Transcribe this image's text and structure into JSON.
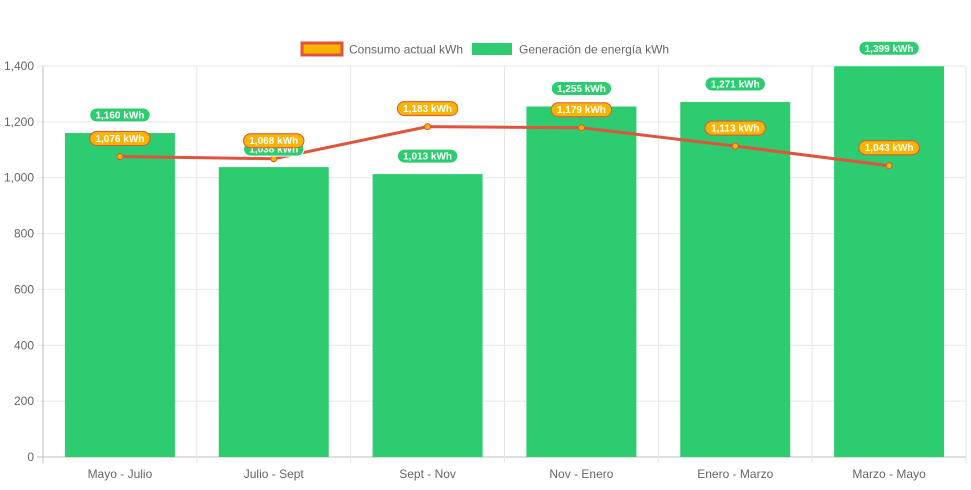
{
  "chart_data": {
    "type": "bar",
    "title": "",
    "xlabel": "",
    "ylabel": "",
    "ylim": [
      0,
      1400
    ],
    "yticks": [
      0,
      200,
      400,
      600,
      800,
      1000,
      1200,
      1400
    ],
    "ytick_labels": [
      "0",
      "200",
      "400",
      "600",
      "800",
      "1,000",
      "1,200",
      "1,400"
    ],
    "grid": true,
    "legend_position": "top-center",
    "categories": [
      "Mayo - Julio",
      "Julio - Sept",
      "Sept - Nov",
      "Nov - Enero",
      "Enero - Marzo",
      "Marzo - Mayo"
    ],
    "series": [
      {
        "name": "Consumo actual kWh",
        "type": "line",
        "values": [
          1076,
          1068,
          1183,
          1179,
          1113,
          1043
        ],
        "labels": [
          "1,076 kWh",
          "1,068 kWh",
          "1,183 kWh",
          "1,179 kWh",
          "1,113 kWh",
          "1,043 kWh"
        ],
        "color": "#e0533c",
        "label_bg": "#f7b500",
        "marker_color": "#f7b500"
      },
      {
        "name": "Generación de energía kWh",
        "type": "bar",
        "values": [
          1160,
          1038,
          1013,
          1255,
          1271,
          1399
        ],
        "labels": [
          "1,160 kWh",
          "1,038 kWh",
          "1,013 kWh",
          "1,255 kWh",
          "1,271 kWh",
          "1,399 kWh"
        ],
        "color": "#2ecc71",
        "label_bg": "#2ecc71"
      }
    ]
  }
}
